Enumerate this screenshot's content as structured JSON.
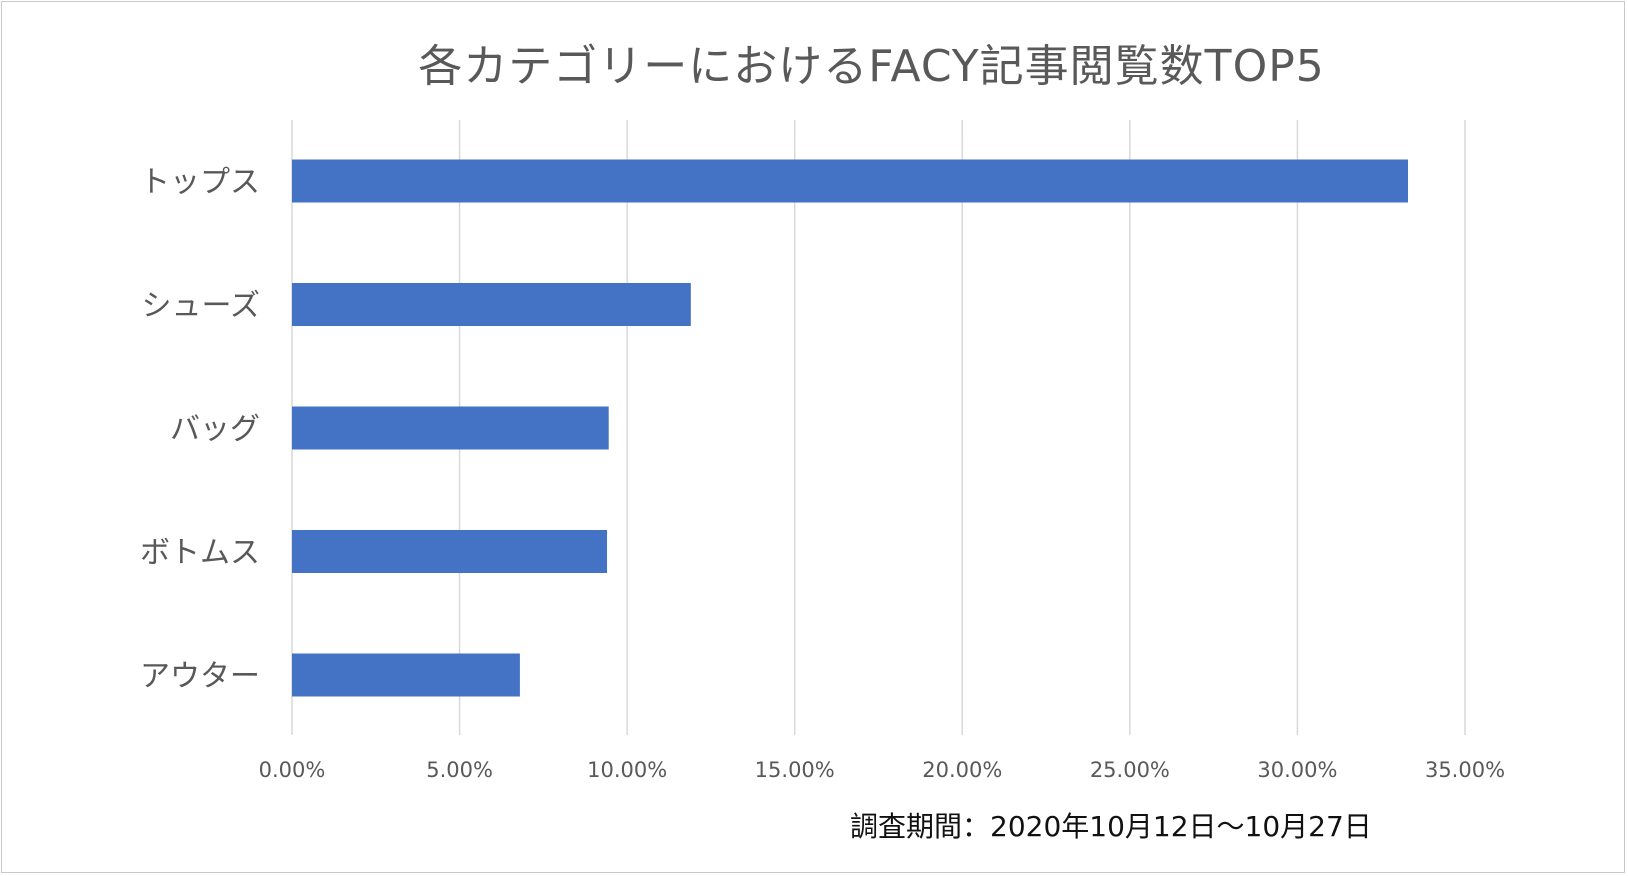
{
  "chart_data": {
    "type": "bar",
    "orientation": "horizontal",
    "title": "各カテゴリーにおけるFACY記事閲覧数TOP5",
    "categories": [
      "トップス",
      "シューズ",
      "バッグ",
      "ボトムス",
      "アウター"
    ],
    "values": [
      33.3,
      11.9,
      9.45,
      9.4,
      6.8
    ],
    "unit": "%",
    "xlim": [
      0,
      35
    ],
    "x_ticks": [
      "0.00%",
      "5.00%",
      "10.00%",
      "15.00%",
      "20.00%",
      "25.00%",
      "30.00%",
      "35.00%"
    ],
    "grid": true,
    "bar_color": "#4472c4",
    "gridline_color": "#d9d9d9"
  },
  "note": "調査期間：2020年10月12日〜10月27日"
}
